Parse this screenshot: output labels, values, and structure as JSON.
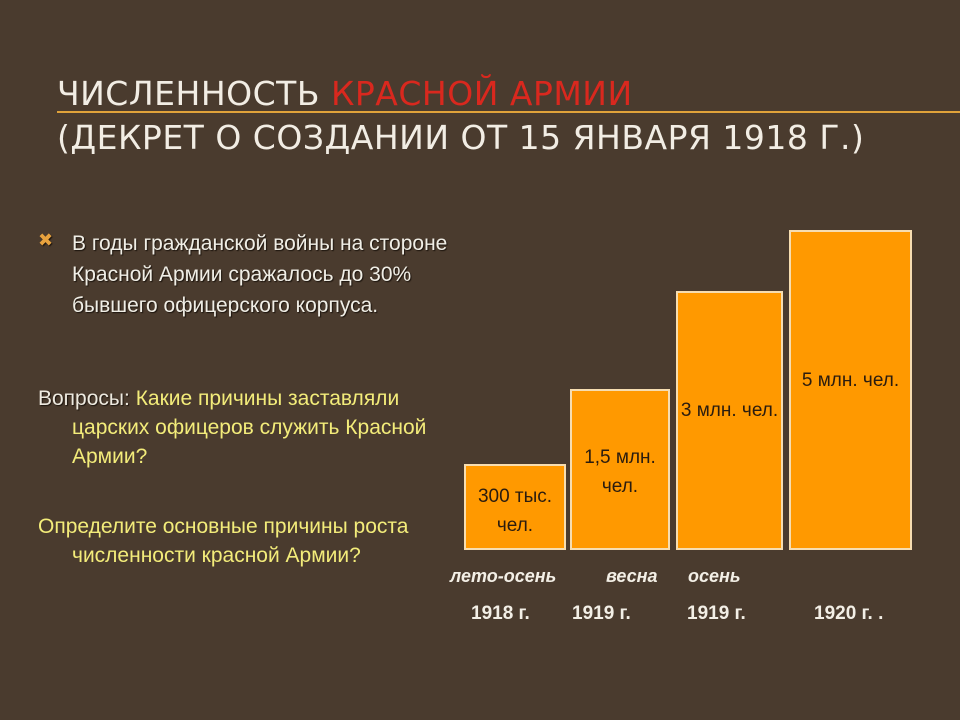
{
  "title": {
    "line1_plain": "Численность ",
    "line1_accent": "Красной армии",
    "line2": "(Декрет  о создании от 15 января 1918 г.)"
  },
  "accent_color": "#d9281e",
  "bullet": {
    "icon": "x-bullet-icon",
    "text": "В годы гражданской войны на стороне Красной Армии сражалось до 30% бывшего офицерского корпуса."
  },
  "questions": {
    "label": "Вопросы:",
    "q1": " Какие причины заставляли  царских офицеров служить Красной Армии?",
    "q2": "Определите основные причины роста численности красной Армии?"
  },
  "chart_data": {
    "type": "bar",
    "categories": [
      "лето-осень 1918 г.",
      "весна 1919 г.",
      "осень 1919 г.",
      "1920 г."
    ],
    "values": [
      300000,
      1500000,
      3000000,
      5000000
    ],
    "value_labels": [
      "300 тыс. чел.",
      "1,5 млн. чел.",
      "3 млн. чел.",
      "5 млн. чел."
    ],
    "periods": [
      "лето-осень",
      "весна",
      "осень"
    ],
    "years": [
      "1918 г.",
      "1919 г.",
      "1919 г.",
      "1920 г. ."
    ],
    "bar_color": "#ff9900"
  }
}
